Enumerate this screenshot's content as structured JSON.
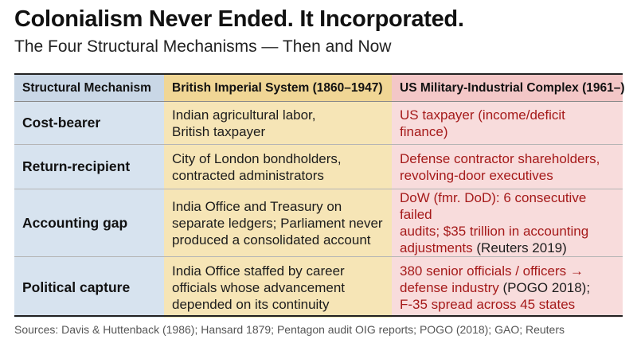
{
  "title": "Colonialism Never Ended. It Incorporated.",
  "subtitle": "The Four Structural Mechanisms — Then and Now",
  "table": {
    "headers": [
      "Structural Mechanism",
      "British Imperial System (1860–1947)",
      "US Military-Industrial Complex (1961–)"
    ],
    "rows": [
      {
        "mechanism": "Cost-bearer",
        "british": [
          "Indian agricultural labor,",
          "British taxpayer"
        ],
        "us": [
          "US taxpayer (income/deficit finance)"
        ]
      },
      {
        "mechanism": "Return-recipient",
        "british": [
          "City of London bondholders,",
          "contracted administrators"
        ],
        "us": [
          "Defense contractor shareholders,",
          "revolving-door executives"
        ]
      },
      {
        "mechanism": "Accounting gap",
        "british": [
          "India Office and Treasury on",
          "separate ledgers; Parliament never",
          "produced a consolidated account"
        ],
        "us": [
          "DoW (fmr. DoD): 6 consecutive failed",
          "audits; $35 trillion in accounting",
          "adjustments"
        ],
        "us_source": " (Reuters 2019)"
      },
      {
        "mechanism": "Political capture",
        "british": [
          "India Office staffed by career",
          "officials whose advancement",
          "depended on its continuity"
        ],
        "us": [
          "380 senior officials / officers →",
          "defense industry"
        ],
        "us_source": " (POGO 2018);",
        "us_tail": "F-35 spread across 45 states"
      }
    ]
  },
  "sources_label": "Sources:",
  "sources": "Davis & Huttenback (1986); Hansard 1879; Pentagon audit OIG reports; POGO (2018); GAO; Reuters",
  "colors": {
    "mechanism_bg": "#d7e3ef",
    "british_bg": "#f6e5b6",
    "us_bg": "#f8dcdc",
    "us_text": "#a51a1a"
  }
}
